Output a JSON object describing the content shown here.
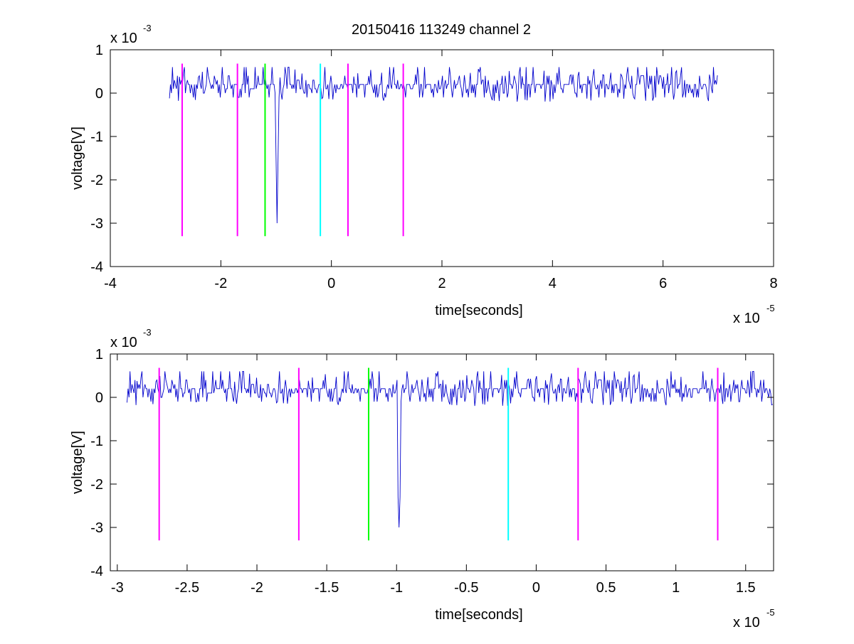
{
  "title": "20150416 113249 channel 2",
  "colors": {
    "signal": "#0000cc",
    "magenta": "#ff00ff",
    "green": "#00ff00",
    "cyan": "#00ffff",
    "axis": "#000000"
  },
  "chart_data": [
    {
      "type": "line",
      "xlabel": "time[seconds]",
      "ylabel": "voltage[V]",
      "x_exponent_label": "x 10",
      "x_exponent": "-5",
      "y_exponent_label": "x 10",
      "y_exponent": "-3",
      "xlim": [
        -4,
        8
      ],
      "ylim": [
        -4,
        1
      ],
      "x_ticks": [
        -4,
        -2,
        0,
        2,
        4,
        6,
        8
      ],
      "x_tick_labels": [
        "-4",
        "-2",
        "0",
        "2",
        "4",
        "6",
        "8"
      ],
      "y_ticks": [
        -4,
        -3,
        -2,
        -1,
        0,
        1
      ],
      "y_tick_labels": [
        "-4",
        "-3",
        "-2",
        "-1",
        "0",
        "1"
      ],
      "signal": {
        "x_range": [
          -2.93,
          7.0
        ],
        "baseline": 0.15,
        "noise": [
          -0.2,
          0.6
        ],
        "spike": {
          "x": -0.98,
          "min": -3.0,
          "mid": -1.5
        }
      },
      "markers": [
        {
          "x": -2.7,
          "color": "magenta",
          "top": 0.68,
          "bottom": -3.3
        },
        {
          "x": -1.7,
          "color": "magenta",
          "top": 0.68,
          "bottom": -3.3
        },
        {
          "x": -1.2,
          "color": "green",
          "top": 0.68,
          "bottom": -3.3
        },
        {
          "x": -0.2,
          "color": "cyan",
          "top": 0.68,
          "bottom": -3.3
        },
        {
          "x": 0.3,
          "color": "magenta",
          "top": 0.68,
          "bottom": -3.3
        },
        {
          "x": 1.3,
          "color": "magenta",
          "top": 0.68,
          "bottom": -3.3
        }
      ],
      "grid": false
    },
    {
      "type": "line",
      "xlabel": "time[seconds]",
      "ylabel": "voltage[V]",
      "x_exponent_label": "x 10",
      "x_exponent": "-5",
      "y_exponent_label": "x 10",
      "y_exponent": "-3",
      "xlim": [
        -3.05,
        1.7
      ],
      "ylim": [
        -4,
        1
      ],
      "x_ticks": [
        -3,
        -2.5,
        -2,
        -1.5,
        -1,
        -0.5,
        0,
        0.5,
        1,
        1.5
      ],
      "x_tick_labels": [
        "-3",
        "-2.5",
        "-2",
        "-1.5",
        "-1",
        "-0.5",
        "0",
        "0.5",
        "1",
        "1.5"
      ],
      "y_ticks": [
        -4,
        -3,
        -2,
        -1,
        0,
        1
      ],
      "y_tick_labels": [
        "-4",
        "-3",
        "-2",
        "-1",
        "0",
        "1"
      ],
      "signal": {
        "x_range": [
          -2.93,
          1.7
        ],
        "baseline": 0.15,
        "noise": [
          -0.2,
          0.6
        ],
        "spike": {
          "x": -0.98,
          "min": -3.0,
          "mid": -2.3
        }
      },
      "markers": [
        {
          "x": -2.7,
          "color": "magenta",
          "top": 0.68,
          "bottom": -3.3
        },
        {
          "x": -1.7,
          "color": "magenta",
          "top": 0.68,
          "bottom": -3.3
        },
        {
          "x": -1.2,
          "color": "green",
          "top": 0.68,
          "bottom": -3.3
        },
        {
          "x": -0.2,
          "color": "cyan",
          "top": 0.68,
          "bottom": -3.3
        },
        {
          "x": 0.3,
          "color": "magenta",
          "top": 0.68,
          "bottom": -3.3
        },
        {
          "x": 1.3,
          "color": "magenta",
          "top": 0.68,
          "bottom": -3.3
        }
      ],
      "grid": false
    }
  ]
}
